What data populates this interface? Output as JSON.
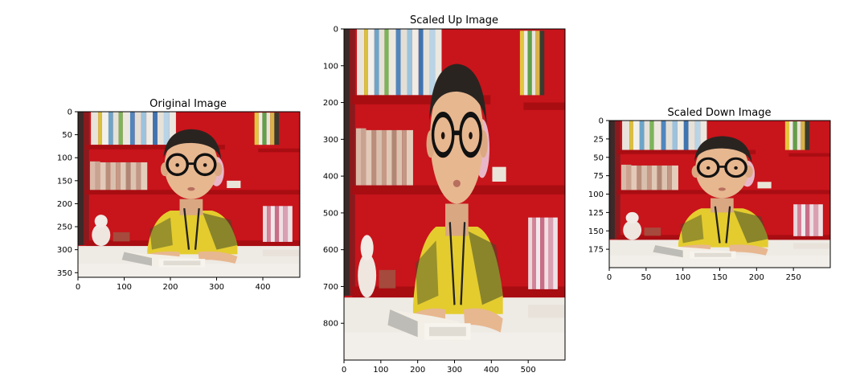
{
  "chart_data": [
    {
      "type": "image",
      "title": "Original Image",
      "xlim": [
        0,
        480
      ],
      "ylim": [
        360,
        0
      ],
      "xticks": [
        0,
        100,
        200,
        300,
        400
      ],
      "yticks": [
        0,
        50,
        100,
        150,
        200,
        250,
        300,
        350
      ]
    },
    {
      "type": "image",
      "title": "Scaled Up Image",
      "xlim": [
        0,
        600
      ],
      "ylim": [
        900,
        0
      ],
      "xticks": [
        0,
        100,
        200,
        300,
        400,
        500
      ],
      "yticks": [
        0,
        100,
        200,
        300,
        400,
        500,
        600,
        700,
        800
      ]
    },
    {
      "type": "image",
      "title": "Scaled Down Image",
      "xlim": [
        0,
        300
      ],
      "ylim": [
        200,
        0
      ],
      "xticks": [
        0,
        50,
        100,
        150,
        200,
        250
      ],
      "yticks": [
        0,
        25,
        50,
        75,
        100,
        125,
        150,
        175
      ]
    }
  ],
  "photo_colors": {
    "bookshelf": "#d3131b",
    "shelf_dark": "#a80d12",
    "carpet": "#eeeae4",
    "skin": "#e7b790",
    "hair": "#2a2420",
    "shirt": "#e4cc2e",
    "shirt_stripes": "#3f4a2a",
    "book": "#f3efe6"
  }
}
